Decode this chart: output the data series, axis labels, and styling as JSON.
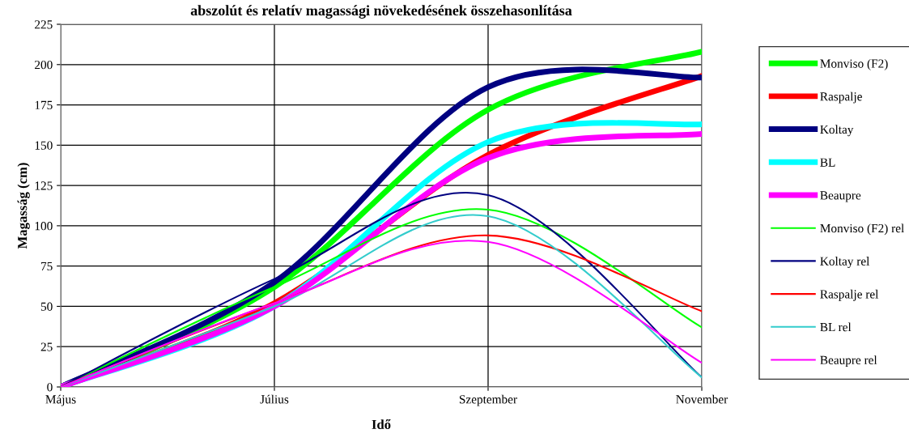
{
  "chart_data": {
    "type": "line",
    "title": "abszolút és relatív magassági növekedésének összehasonlítása",
    "xlabel": "Idő",
    "ylabel": "Magasság (cm)",
    "categories": [
      "Május",
      "Július",
      "Szeptember",
      "November"
    ],
    "series": [
      {
        "name": "Monviso (F2)",
        "color": "#00ff00",
        "values": [
          0,
          62,
          172,
          208
        ]
      },
      {
        "name": "Raspalje",
        "color": "#ff0000",
        "values": [
          0,
          52,
          144,
          193
        ]
      },
      {
        "name": "Koltay",
        "color": "#000080",
        "values": [
          0,
          65,
          186,
          192
        ]
      },
      {
        "name": "BL",
        "color": "#00ffff",
        "values": [
          0,
          50,
          152,
          163
        ]
      },
      {
        "name": "Beaupre",
        "color": "#ff00ff",
        "values": [
          0,
          50,
          142,
          157
        ]
      },
      {
        "name": "Monviso (F2) rel",
        "color": "#00ff00",
        "values": [
          0,
          62,
          110,
          37
        ]
      },
      {
        "name": "Koltay rel",
        "color": "#000080",
        "values": [
          0,
          67,
          119,
          6
        ]
      },
      {
        "name": "Raspalje rel",
        "color": "#ff0000",
        "values": [
          0,
          52,
          94,
          47
        ]
      },
      {
        "name": "BL rel",
        "color": "#33cccc",
        "values": [
          0,
          50,
          106,
          6
        ]
      },
      {
        "name": "Beaupre rel",
        "color": "#ff00ff",
        "values": [
          0,
          52,
          90,
          15
        ]
      }
    ],
    "ylim": [
      0,
      225
    ],
    "yticks": [
      0,
      25,
      50,
      75,
      100,
      125,
      150,
      175,
      200,
      225
    ],
    "grid": true,
    "legend": "right",
    "marker": "none",
    "line_style": "solid"
  }
}
